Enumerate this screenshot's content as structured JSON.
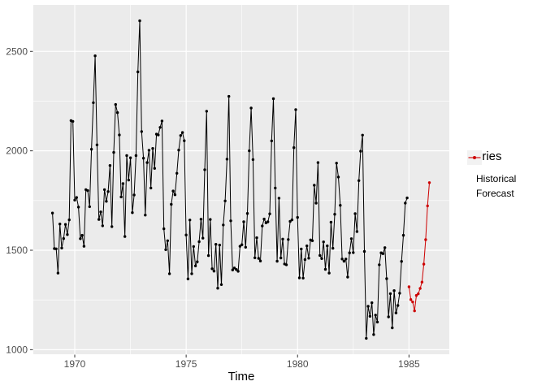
{
  "chart_data": {
    "type": "line",
    "title": "",
    "xlabel": "Time",
    "ylabel": "",
    "xlim": [
      1968.14,
      1986.81
    ],
    "ylim": [
      977,
      2734
    ],
    "x_ticks": [
      1970,
      1975,
      1980,
      1985
    ],
    "y_ticks": [
      1000,
      1500,
      2000,
      2500
    ],
    "x_minor_ticks": [
      1972.5,
      1977.5,
      1982.5
    ],
    "y_minor_ticks": [
      1250,
      1750,
      2250
    ],
    "grid": true,
    "legend": {
      "title": "Series",
      "position": "right",
      "entries": [
        {
          "label": "Historical",
          "color": "#000000"
        },
        {
          "label": "Forecast",
          "color": "#CD0000"
        }
      ]
    },
    "series": [
      {
        "name": "Historical",
        "color": "#000000",
        "start": 1969.0,
        "frequency": 12,
        "values": [
          1687,
          1508,
          1507,
          1385,
          1632,
          1511,
          1559,
          1630,
          1579,
          1653,
          2152,
          2148,
          1752,
          1765,
          1717,
          1558,
          1575,
          1520,
          1805,
          1800,
          1719,
          2008,
          2242,
          2478,
          2030,
          1655,
          1693,
          1623,
          1805,
          1746,
          1795,
          1926,
          1619,
          1992,
          2233,
          2192,
          2080,
          1768,
          1835,
          1569,
          1976,
          1853,
          1965,
          1689,
          1778,
          1976,
          2397,
          2654,
          2097,
          1963,
          1677,
          1941,
          2003,
          1813,
          2012,
          1912,
          2084,
          2080,
          2118,
          2150,
          1608,
          1503,
          1548,
          1382,
          1731,
          1798,
          1779,
          1887,
          2004,
          2077,
          2092,
          2051,
          1577,
          1356,
          1652,
          1382,
          1519,
          1421,
          1442,
          1543,
          1656,
          1561,
          1905,
          2199,
          1473,
          1655,
          1407,
          1395,
          1530,
          1309,
          1526,
          1327,
          1627,
          1748,
          1958,
          2274,
          1648,
          1401,
          1411,
          1403,
          1394,
          1520,
          1528,
          1643,
          1515,
          1685,
          2000,
          2215,
          1956,
          1462,
          1563,
          1459,
          1446,
          1622,
          1657,
          1638,
          1643,
          1683,
          2050,
          2262,
          1813,
          1445,
          1762,
          1461,
          1556,
          1431,
          1427,
          1554,
          1645,
          1653,
          2016,
          2207,
          1665,
          1361,
          1506,
          1360,
          1453,
          1522,
          1460,
          1552,
          1548,
          1827,
          1737,
          1941,
          1474,
          1458,
          1542,
          1404,
          1522,
          1385,
          1641,
          1510,
          1681,
          1938,
          1868,
          1726,
          1456,
          1445,
          1456,
          1365,
          1487,
          1558,
          1488,
          1684,
          1594,
          1850,
          1998,
          2079,
          1494,
          1057,
          1218,
          1168,
          1236,
          1076,
          1174,
          1139,
          1427,
          1487,
          1483,
          1513,
          1357,
          1165,
          1282,
          1110,
          1297,
          1185,
          1222,
          1284,
          1444,
          1575,
          1737,
          1763
        ]
      },
      {
        "name": "Forecast",
        "color": "#CD0000",
        "start": 1985.0,
        "frequency": 12,
        "values": [
          1316,
          1252,
          1240,
          1195,
          1273,
          1281,
          1308,
          1340,
          1430,
          1553,
          1723,
          1840
        ]
      }
    ]
  },
  "colors": {
    "panel_background": "#EBEBEB",
    "grid_line": "#FFFFFF",
    "legend_key_background": "#F2F2F2",
    "tick_label_text": "#4D4D4D",
    "axis_title_text": "#000000",
    "tick_mark": "#333333"
  }
}
